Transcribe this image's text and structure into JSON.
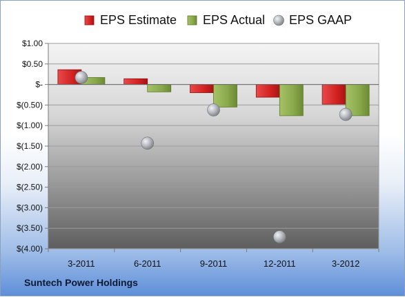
{
  "company_name": "Suntech Power Holdings",
  "colors": {
    "estimate": "#d42a2a",
    "actual": "#8cab4e",
    "gaap": "#b8bcc2"
  },
  "chart_data": {
    "type": "bar",
    "categories": [
      "3-2011",
      "6-2011",
      "9-2011",
      "12-2011",
      "3-2012"
    ],
    "series": [
      {
        "name": "EPS Estimate",
        "kind": "bar",
        "values": [
          0.36,
          0.14,
          -0.2,
          -0.31,
          -0.48
        ]
      },
      {
        "name": "EPS Actual",
        "kind": "bar",
        "values": [
          0.17,
          -0.18,
          -0.55,
          -0.76,
          -0.76
        ]
      },
      {
        "name": "EPS GAAP",
        "kind": "marker",
        "values": [
          0.17,
          -1.43,
          -0.62,
          -3.71,
          -0.73
        ]
      }
    ],
    "yticks": [
      1.0,
      0.5,
      0,
      -0.5,
      -1.0,
      -1.5,
      -2.0,
      -2.5,
      -3.0,
      -3.5,
      -4.0
    ],
    "ytick_labels": [
      "$1.00",
      "$0.50",
      "$-",
      "$(0.50)",
      "$(1.00)",
      "$(1.50)",
      "$(2.00)",
      "$(2.50)",
      "$(3.00)",
      "$(3.50)",
      "$(4.00)"
    ],
    "ylim": [
      -4.0,
      1.0
    ],
    "grid": true,
    "legend_position": "top"
  }
}
